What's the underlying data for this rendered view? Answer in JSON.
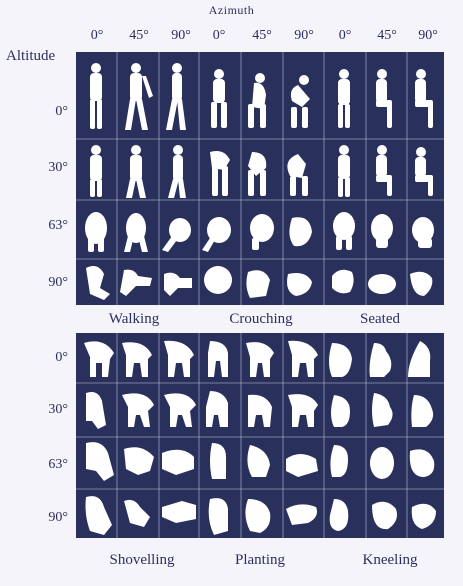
{
  "header": {
    "azimuth_title": "Azimuth",
    "azimuth_labels": [
      "0°",
      "45°",
      "90°",
      "0°",
      "45°",
      "90°",
      "0°",
      "45°",
      "90°"
    ],
    "altitude_title": "Altitude"
  },
  "panels": [
    {
      "altitude_labels": [
        "0°",
        "30°",
        "63°",
        "90°"
      ],
      "activities": [
        "Walking",
        "Crouching",
        "Seated"
      ]
    },
    {
      "altitude_labels": [
        "0°",
        "30°",
        "63°",
        "90°"
      ],
      "activities": [
        "Shovelling",
        "Planting",
        "Kneeling"
      ]
    }
  ],
  "colors": {
    "panel_background": "#28305b",
    "silhouette": "#ffffff",
    "divider": "#c9cde0",
    "text": "#2a2f5e"
  }
}
